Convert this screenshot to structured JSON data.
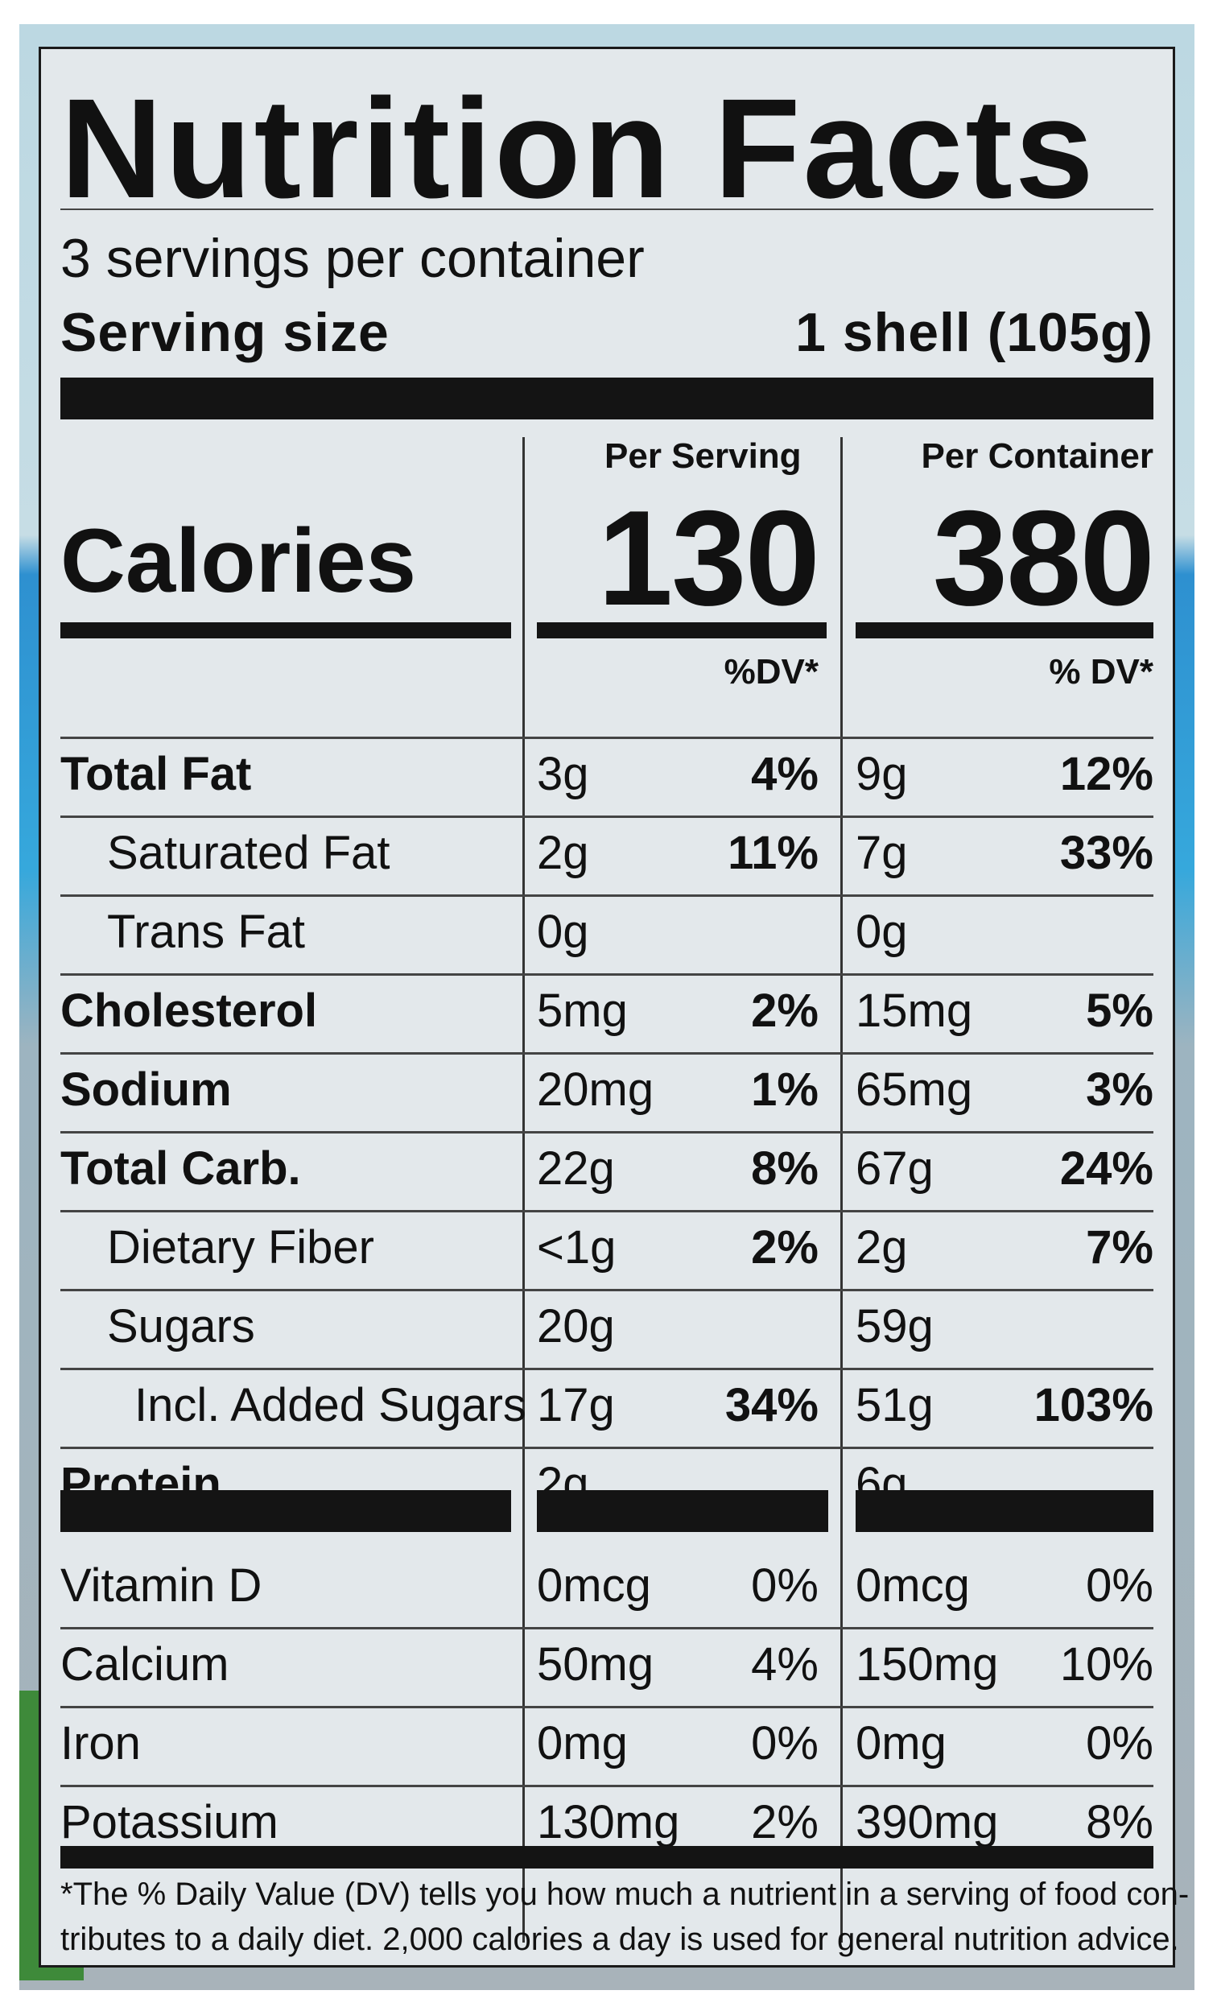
{
  "title": "Nutrition Facts",
  "servings_per_container": "3 servings per container",
  "serving_size_label": "Serving size",
  "serving_size_value": "1 shell (105g)",
  "columns": {
    "per_serving": "Per Serving",
    "per_container": "Per Container"
  },
  "calories": {
    "label": "Calories",
    "per_serving": "130",
    "per_container": "380"
  },
  "dv_headers": {
    "per_serving": "%DV*",
    "per_container": "% DV*"
  },
  "nutrients": [
    {
      "label": "Total Fat",
      "serving_amount": "3g",
      "serving_dv": "4%",
      "container_amount": "9g",
      "container_dv": "12%"
    },
    {
      "label": "Saturated Fat",
      "serving_amount": "2g",
      "serving_dv": "11%",
      "container_amount": "7g",
      "container_dv": "33%"
    },
    {
      "label": "Trans Fat",
      "serving_amount": "0g",
      "serving_dv": "",
      "container_amount": "0g",
      "container_dv": ""
    },
    {
      "label": "Cholesterol",
      "serving_amount": "5mg",
      "serving_dv": "2%",
      "container_amount": "15mg",
      "container_dv": "5%"
    },
    {
      "label": "Sodium",
      "serving_amount": "20mg",
      "serving_dv": "1%",
      "container_amount": "65mg",
      "container_dv": "3%"
    },
    {
      "label": "Total Carb.",
      "serving_amount": "22g",
      "serving_dv": "8%",
      "container_amount": "67g",
      "container_dv": "24%"
    },
    {
      "label": "Dietary Fiber",
      "serving_amount": "<1g",
      "serving_dv": "2%",
      "container_amount": "2g",
      "container_dv": "7%"
    },
    {
      "label": "Sugars",
      "serving_amount": "20g",
      "serving_dv": "",
      "container_amount": "59g",
      "container_dv": ""
    },
    {
      "label": "Incl. Added Sugars",
      "serving_amount": "17g",
      "serving_dv": "34%",
      "container_amount": "51g",
      "container_dv": "103%"
    },
    {
      "label": "Protein",
      "serving_amount": "2g",
      "serving_dv": "",
      "container_amount": "6g",
      "container_dv": ""
    }
  ],
  "vitamins": [
    {
      "label": "Vitamin D",
      "serving_amount": "0mcg",
      "serving_dv": "0%",
      "container_amount": "0mcg",
      "container_dv": "0%"
    },
    {
      "label": "Calcium",
      "serving_amount": "50mg",
      "serving_dv": "4%",
      "container_amount": "150mg",
      "container_dv": "10%"
    },
    {
      "label": "Iron",
      "serving_amount": "0mg",
      "serving_dv": "0%",
      "container_amount": "0mg",
      "container_dv": "0%"
    },
    {
      "label": "Potassium",
      "serving_amount": "130mg",
      "serving_dv": "2%",
      "container_amount": "390mg",
      "container_dv": "8%"
    }
  ],
  "footnote": {
    "line1": "*The % Daily Value (DV) tells you how much a nutrient in a serving of food con-",
    "line2": "tributes to a daily diet. 2,000 calories a day is used for general nutrition advice."
  }
}
